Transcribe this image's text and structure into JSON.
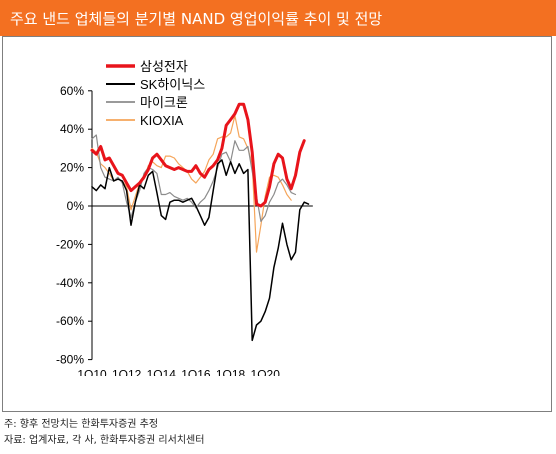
{
  "title": "주요 낸드 업체들의 분기별 NAND 영업이익률 추이 및 전망",
  "notes": {
    "note1": "주: 향후 전망치는 한화투자증권 추정",
    "note2": "자료: 업계자료, 각 사, 한화투자증권 리서치센터"
  },
  "colors": {
    "title_bg": "#f37021",
    "samsung": "#e8141b",
    "sk_hynix": "#000000",
    "micron": "#8c8c8c",
    "kioxia": "#f5a55a"
  },
  "chart_data": {
    "type": "line",
    "title": "",
    "xlabel": "",
    "ylabel": "",
    "ylim": [
      -80,
      60
    ],
    "y_ticks": [
      60,
      40,
      20,
      0,
      -20,
      -40,
      -60,
      -80
    ],
    "y_tick_labels": [
      "60%",
      "40%",
      "20%",
      "0%",
      "-20%",
      "-40%",
      "-60%",
      "-80%"
    ],
    "x_tick_labels": [
      "1Q10",
      "1Q12",
      "1Q14",
      "1Q16",
      "1Q18",
      "1Q20"
    ],
    "x_tick_quarters": [
      0,
      8,
      16,
      24,
      32,
      40
    ],
    "legend_position": "top-left",
    "grid": false,
    "series": [
      {
        "name": "삼성전자",
        "start_quarter": 0,
        "color": "#e8141b",
        "width": 3,
        "values": [
          29,
          27,
          31,
          24,
          25,
          21,
          17,
          16,
          12,
          8,
          10,
          12,
          15,
          19,
          25,
          27,
          24,
          21,
          20,
          19,
          20,
          19,
          18,
          18,
          21,
          17,
          15,
          19,
          21,
          24,
          30,
          42,
          45,
          48,
          53,
          53,
          45,
          28,
          1,
          0,
          2,
          10,
          22,
          27,
          25,
          14,
          9,
          16,
          28,
          34
        ]
      },
      {
        "name": "SK하이닉스",
        "start_quarter": 0,
        "color": "#000000",
        "width": 1.5,
        "values": [
          10,
          8,
          11,
          9,
          20,
          13,
          14,
          13,
          8,
          -10,
          2,
          11,
          9,
          16,
          18,
          7,
          -5,
          -7,
          2,
          3,
          3,
          2,
          3,
          4,
          0,
          -5,
          -10,
          -6,
          8,
          22,
          24,
          16,
          23,
          17,
          22,
          17,
          19,
          -70,
          -62,
          -60,
          -55,
          -48,
          -32,
          -22,
          -9,
          -20,
          -28,
          -24,
          -2,
          2,
          1
        ]
      },
      {
        "name": "마이크론",
        "start_quarter": 0,
        "color": "#8c8c8c",
        "width": 1.2,
        "values": [
          35,
          37,
          20,
          15,
          14,
          13,
          15,
          12,
          2,
          -6,
          2,
          8,
          17,
          20,
          19,
          17,
          6,
          6,
          7,
          5,
          4,
          3,
          4,
          2,
          -1,
          2,
          4,
          8,
          13,
          20,
          27,
          28,
          23,
          34,
          29,
          29,
          31,
          18,
          5,
          -8,
          -5,
          2,
          6,
          12,
          14,
          11,
          7,
          6
        ]
      },
      {
        "name": "KIOXIA",
        "start_quarter": 0,
        "color": "#f5a55a",
        "width": 1.2,
        "values": [
          30,
          28,
          22,
          20,
          17,
          13,
          14,
          13,
          10,
          -2,
          5,
          12,
          14,
          21,
          23,
          21,
          20,
          26,
          26,
          25,
          22,
          20,
          18,
          14,
          12,
          15,
          18,
          24,
          27,
          35,
          36,
          36,
          38,
          47,
          36,
          35,
          30,
          22,
          -24,
          -10,
          5,
          15,
          16,
          15,
          11,
          6,
          3
        ]
      }
    ]
  }
}
